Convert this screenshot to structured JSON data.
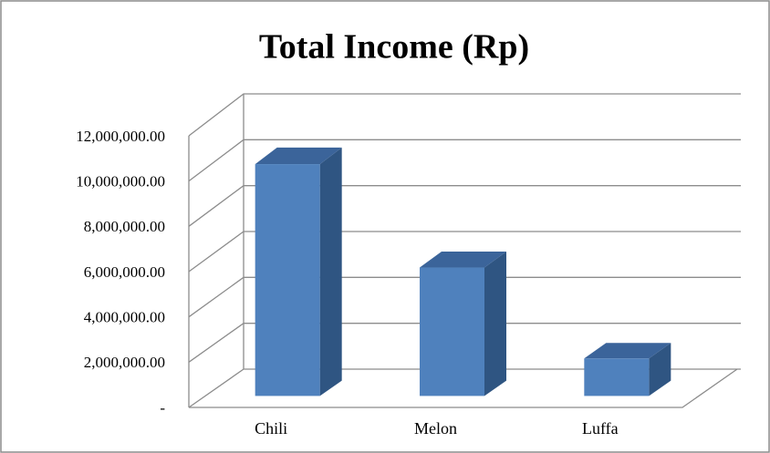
{
  "chart_data": {
    "type": "bar3d",
    "title": "Total Income (Rp)",
    "categories": [
      "Chili",
      "Melon",
      "Luffa"
    ],
    "values": [
      10200000,
      5650000,
      1650000
    ],
    "color": "#4f81bd",
    "ylim": [
      0,
      12000000
    ],
    "yticks": [
      {
        "value": 0,
        "label": "-"
      },
      {
        "value": 2000000,
        "label": "2,000,000.00"
      },
      {
        "value": 4000000,
        "label": "4,000,000.00"
      },
      {
        "value": 6000000,
        "label": "6,000,000.00"
      },
      {
        "value": 8000000,
        "label": "8,000,000.00"
      },
      {
        "value": 10000000,
        "label": "10,000,000.00"
      },
      {
        "value": 12000000,
        "label": "12,000,000.00"
      }
    ],
    "grid": true
  }
}
